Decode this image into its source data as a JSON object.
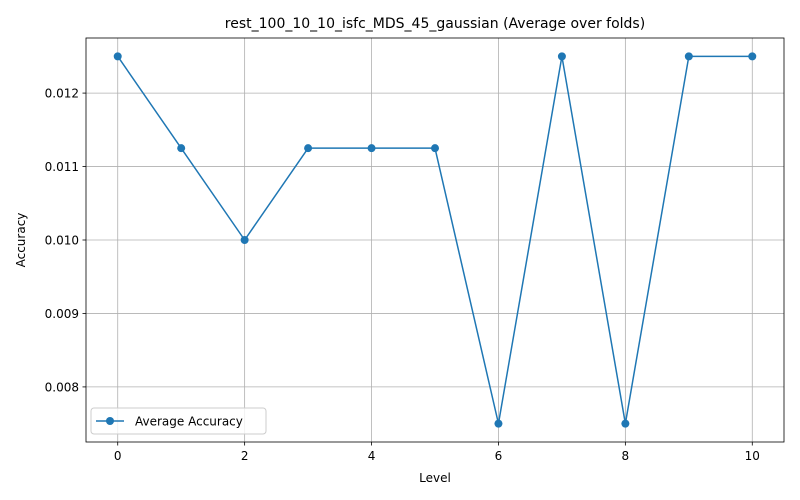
{
  "chart_data": {
    "type": "line",
    "title": "rest_100_10_10_isfc_MDS_45_gaussian (Average over folds)",
    "xlabel": "Level",
    "ylabel": "Accuracy",
    "x": [
      0,
      1,
      2,
      3,
      4,
      5,
      6,
      7,
      8,
      9,
      10
    ],
    "series": [
      {
        "name": "Average Accuracy",
        "values": [
          0.0125,
          0.01125,
          0.01,
          0.01125,
          0.01125,
          0.01125,
          0.0075,
          0.0125,
          0.0075,
          0.0125,
          0.0125
        ],
        "color": "#1f77b4",
        "marker": "circle"
      }
    ],
    "xlim": [
      -0.5,
      10.5
    ],
    "ylim": [
      0.00725,
      0.01275
    ],
    "xticks": [
      0,
      2,
      4,
      6,
      8,
      10
    ],
    "xtick_labels": [
      "0",
      "2",
      "4",
      "6",
      "8",
      "10"
    ],
    "yticks": [
      0.008,
      0.009,
      0.01,
      0.011,
      0.012
    ],
    "ytick_labels": [
      "0.008",
      "0.009",
      "0.010",
      "0.011",
      "0.012"
    ],
    "grid": true,
    "legend_position": "lower-left"
  }
}
